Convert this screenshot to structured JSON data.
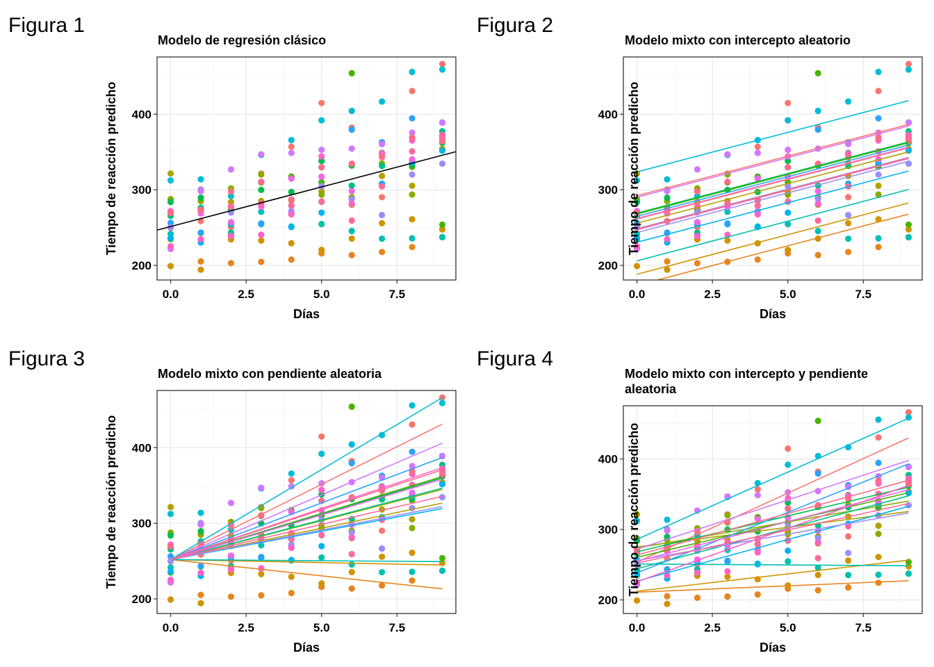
{
  "colors": [
    "#F8766D",
    "#E7851E",
    "#D09400",
    "#B2A100",
    "#89AC00",
    "#45B500",
    "#00BC51",
    "#00C087",
    "#00C0B2",
    "#00BCD6",
    "#00B3F2",
    "#29A3FF",
    "#9C8DFF",
    "#D277FF",
    "#F166E8",
    "#FF61C7",
    "#FF689E",
    "#FF6C88"
  ],
  "observations": [
    [
      249.56,
      258.7,
      250.8,
      321.44,
      356.85,
      414.69,
      382.2,
      290.15,
      430.59,
      466.35
    ],
    [
      222.73,
      205.27,
      202.98,
      204.71,
      207.72,
      215.96,
      213.63,
      217.73,
      224.3,
      237.31
    ],
    [
      199.05,
      194.33,
      234.32,
      232.84,
      229.31,
      220.46,
      235.42,
      255.75,
      261.01,
      247.52
    ],
    [
      321.54,
      300.4,
      283.86,
      285.13,
      285.8,
      297.59,
      280.24,
      318.26,
      305.35,
      354.05
    ],
    [
      287.61,
      285.0,
      301.82,
      320.12,
      316.28,
      293.32,
      290.08,
      334.82,
      293.75,
      371.58
    ],
    [
      234.86,
      242.81,
      272.96,
      309.77,
      317.46,
      309.99,
      454.16,
      346.83,
      330.3,
      253.86
    ],
    [
      283.84,
      289.56,
      276.77,
      299.8,
      297.17,
      338.17,
      332.02,
      348.84,
      333.36,
      362.04
    ],
    [
      265.47,
      276.2,
      243.36,
      254.68,
      279.02,
      284.19,
      305.53,
      331.5,
      335.75,
      377.3
    ],
    [
      241.61,
      273.94,
      254.44,
      270.8,
      251.45,
      254.64,
      245.45,
      235.31,
      235.79,
      237.25
    ],
    [
      312.36,
      313.8,
      291.61,
      346.12,
      365.73,
      391.84,
      404.26,
      416.69,
      455.86,
      458.92
    ],
    [
      236.1,
      230.31,
      238.92,
      254.92,
      250.71,
      269.77,
      281.56,
      308.1,
      336.23,
      351.65
    ],
    [
      256.29,
      243.45,
      256.2,
      255.53,
      268.92,
      329.73,
      379.44,
      362.91,
      394.49,
      389.05
    ],
    [
      250.53,
      300.06,
      269.89,
      280.58,
      271.83,
      304.63,
      287.75,
      266.59,
      320.16,
      334.48
    ],
    [
      221.68,
      298.19,
      326.88,
      346.85,
      348.74,
      352.83,
      354.42,
      360.42,
      375.64,
      388.54
    ],
    [
      271.92,
      268.7,
      257.24,
      277.66,
      314.82,
      317.21,
      298.14,
      348.12,
      340.28,
      366.51
    ],
    [
      225.26,
      234.52,
      238.9,
      240.47,
      267.54,
      344.19,
      281.15,
      347.59,
      365.16,
      372.23
    ],
    [
      269.88,
      272.44,
      277.9,
      281.79,
      279.17,
      284.51,
      259.27,
      304.63,
      350.78,
      369.47
    ],
    [
      269.41,
      273.47,
      297.6,
      310.63,
      287.17,
      329.61,
      334.48,
      343.22,
      369.14,
      364.12
    ]
  ],
  "charts": [
    {
      "figure_label": "Figura  1",
      "title": "Modelo de regresión clásico",
      "title_line2": "",
      "xlabel": "Días",
      "ylabel": "Tiempo de reacción predicho",
      "x_ticks": [
        "0.0",
        "2.5",
        "5.0",
        "7.5"
      ],
      "y_ticks": [
        "200",
        "300",
        "400"
      ],
      "chart_data": {
        "type": "scatter",
        "x": [
          0,
          1,
          2,
          3,
          4,
          5,
          6,
          7,
          8,
          9
        ],
        "xlim": [
          -0.45,
          9.45
        ],
        "ylim": [
          180.7,
          475.6
        ],
        "grid": true,
        "legend": "none",
        "fit_lines": [
          {
            "intercept": 251.4,
            "slope": 10.47,
            "color": "#000000"
          }
        ]
      }
    },
    {
      "figure_label": "Figura  2",
      "title": "Modelo mixto con intercepto aleatorio",
      "title_line2": "",
      "xlabel": "Días",
      "ylabel": "Tiempo de reacción predicho",
      "x_ticks": [
        "0.0",
        "2.5",
        "5.0",
        "7.5"
      ],
      "y_ticks": [
        "200",
        "300",
        "400"
      ],
      "chart_data": {
        "type": "scatter",
        "x": [
          0,
          1,
          2,
          3,
          4,
          5,
          6,
          7,
          8,
          9
        ],
        "xlim": [
          -0.45,
          9.45
        ],
        "ylim": [
          180.7,
          475.6
        ],
        "grid": true,
        "legend": "none",
        "fit_lines": [
          {
            "intercept": 292.2,
            "slope": 10.47,
            "color": "#F8766D"
          },
          {
            "intercept": 173.6,
            "slope": 10.47,
            "color": "#E7851E"
          },
          {
            "intercept": 188.3,
            "slope": 10.47,
            "color": "#D09400"
          },
          {
            "intercept": 255.8,
            "slope": 10.47,
            "color": "#B2A100"
          },
          {
            "intercept": 261.6,
            "slope": 10.47,
            "color": "#89AC00"
          },
          {
            "intercept": 267.9,
            "slope": 10.47,
            "color": "#45B500"
          },
          {
            "intercept": 269.1,
            "slope": 10.47,
            "color": "#00BC51"
          },
          {
            "intercept": 248.4,
            "slope": 10.47,
            "color": "#00C087"
          },
          {
            "intercept": 206.1,
            "slope": 10.47,
            "color": "#00C0B2"
          },
          {
            "intercept": 323.6,
            "slope": 10.47,
            "color": "#00BCD6"
          },
          {
            "intercept": 230.6,
            "slope": 10.47,
            "color": "#00B3F2"
          },
          {
            "intercept": 265.0,
            "slope": 10.47,
            "color": "#29A3FF"
          },
          {
            "intercept": 243.5,
            "slope": 10.47,
            "color": "#9C8DFF"
          },
          {
            "intercept": 290.1,
            "slope": 10.47,
            "color": "#D277FF"
          },
          {
            "intercept": 262.1,
            "slope": 10.47,
            "color": "#F166E8"
          },
          {
            "intercept": 248.1,
            "slope": 10.47,
            "color": "#FF61C7"
          },
          {
            "intercept": 247.2,
            "slope": 10.47,
            "color": "#FF689E"
          },
          {
            "intercept": 261.4,
            "slope": 10.47,
            "color": "#FF6C88"
          }
        ]
      }
    },
    {
      "figure_label": "Figura  3",
      "title": "Modelo mixto con pendiente aleatoria",
      "title_line2": "",
      "xlabel": "Días",
      "ylabel": "Tiempo de reacción predicho",
      "x_ticks": [
        "0.0",
        "2.5",
        "5.0",
        "7.5"
      ],
      "y_ticks": [
        "200",
        "300",
        "400"
      ],
      "chart_data": {
        "type": "scatter",
        "x": [
          0,
          1,
          2,
          3,
          4,
          5,
          6,
          7,
          8,
          9
        ],
        "xlim": [
          -0.45,
          9.45
        ],
        "ylim": [
          180.7,
          475.6
        ],
        "grid": true,
        "legend": "none",
        "fit_lines": [
          {
            "intercept": 252.0,
            "slope": 19.9,
            "color": "#F8766D"
          },
          {
            "intercept": 252.0,
            "slope": -4.3,
            "color": "#E7851E"
          },
          {
            "intercept": 252.0,
            "slope": -0.8,
            "color": "#D09400"
          },
          {
            "intercept": 252.0,
            "slope": 8.3,
            "color": "#B2A100"
          },
          {
            "intercept": 252.0,
            "slope": 10.3,
            "color": "#89AC00"
          },
          {
            "intercept": 252.0,
            "slope": 12.2,
            "color": "#45B500"
          },
          {
            "intercept": 252.0,
            "slope": 12.0,
            "color": "#00BC51"
          },
          {
            "intercept": 252.0,
            "slope": 10.5,
            "color": "#00C087"
          },
          {
            "intercept": 252.0,
            "slope": -0.3,
            "color": "#00C0B2"
          },
          {
            "intercept": 252.0,
            "slope": 23.8,
            "color": "#00BCD6"
          },
          {
            "intercept": 252.0,
            "slope": 7.5,
            "color": "#00B3F2"
          },
          {
            "intercept": 252.0,
            "slope": 15.0,
            "color": "#29A3FF"
          },
          {
            "intercept": 252.0,
            "slope": 7.8,
            "color": "#9C8DFF"
          },
          {
            "intercept": 252.0,
            "slope": 17.1,
            "color": "#D277FF"
          },
          {
            "intercept": 252.0,
            "slope": 11.8,
            "color": "#F166E8"
          },
          {
            "intercept": 252.0,
            "slope": 13.5,
            "color": "#FF61C7"
          },
          {
            "intercept": 252.0,
            "slope": 9.3,
            "color": "#FF689E"
          },
          {
            "intercept": 252.0,
            "slope": 13.2,
            "color": "#FF6C88"
          }
        ]
      }
    },
    {
      "figure_label": "Figura  4",
      "title": "Modelo mixto con intercepto y pendiente",
      "title_line2": " aleatoria",
      "xlabel": "Días",
      "ylabel": "Tiempo de reacción predicho",
      "x_ticks": [
        "0.0",
        "2.5",
        "5.0",
        "7.5"
      ],
      "y_ticks": [
        "200",
        "300",
        "400"
      ],
      "chart_data": {
        "type": "scatter",
        "x": [
          0,
          1,
          2,
          3,
          4,
          5,
          6,
          7,
          8,
          9
        ],
        "xlim": [
          -0.45,
          9.45
        ],
        "ylim": [
          180.7,
          475.6
        ],
        "grid": true,
        "legend": "none",
        "fit_lines": [
          {
            "intercept": 253.6,
            "slope": 19.6,
            "color": "#F8766D"
          },
          {
            "intercept": 211.0,
            "slope": 1.8,
            "color": "#E7851E"
          },
          {
            "intercept": 212.4,
            "slope": 4.9,
            "color": "#D09400"
          },
          {
            "intercept": 275.1,
            "slope": 5.6,
            "color": "#B2A100"
          },
          {
            "intercept": 273.7,
            "slope": 7.4,
            "color": "#89AC00"
          },
          {
            "intercept": 260.4,
            "slope": 10.2,
            "color": "#45B500"
          },
          {
            "intercept": 268.2,
            "slope": 10.2,
            "color": "#00BC51"
          },
          {
            "intercept": 244.2,
            "slope": 11.5,
            "color": "#00C087"
          },
          {
            "intercept": 251.1,
            "slope": -0.3,
            "color": "#00C0B2"
          },
          {
            "intercept": 286.0,
            "slope": 19.1,
            "color": "#00BCD6"
          },
          {
            "intercept": 226.7,
            "slope": 11.8,
            "color": "#00B3F2"
          },
          {
            "intercept": 238.3,
            "slope": 17.2,
            "color": "#29A3FF"
          },
          {
            "intercept": 255.9,
            "slope": 7.5,
            "color": "#9C8DFF"
          },
          {
            "intercept": 272.0,
            "slope": 14.0,
            "color": "#D277FF"
          },
          {
            "intercept": 254.7,
            "slope": 11.3,
            "color": "#F166E8"
          },
          {
            "intercept": 225.8,
            "slope": 15.2,
            "color": "#FF61C7"
          },
          {
            "intercept": 252.2,
            "slope": 9.4,
            "color": "#FF689E"
          },
          {
            "intercept": 263.7,
            "slope": 11.8,
            "color": "#FF6C88"
          }
        ]
      }
    }
  ]
}
